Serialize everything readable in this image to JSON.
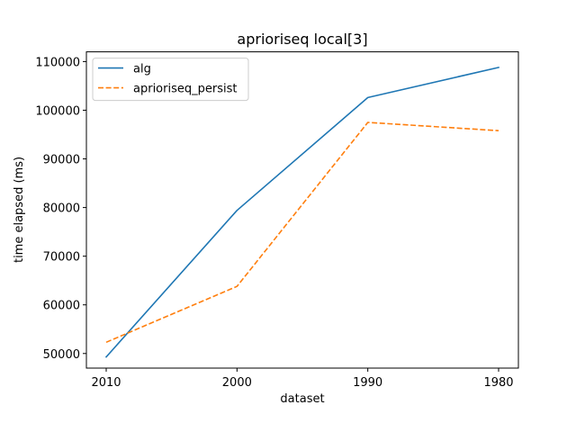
{
  "chart_data": {
    "type": "line",
    "title": "aprioriseq local[3]",
    "xlabel": "dataset",
    "ylabel": "time elapsed (ms)",
    "categories": [
      "2010",
      "2000",
      "1990",
      "1980"
    ],
    "ylim": [
      47000,
      112000
    ],
    "yticks": [
      50000,
      60000,
      70000,
      80000,
      90000,
      100000,
      110000
    ],
    "grid": false,
    "legend_position": "upper-left",
    "series": [
      {
        "name": "alg",
        "color": "#1f77b4",
        "style": "solid",
        "values": [
          49300,
          79400,
          102600,
          108800
        ]
      },
      {
        "name": "aprioriseq_persist",
        "color": "#ff7f0e",
        "style": "dashed",
        "values": [
          52300,
          63800,
          97500,
          95800
        ]
      }
    ]
  }
}
